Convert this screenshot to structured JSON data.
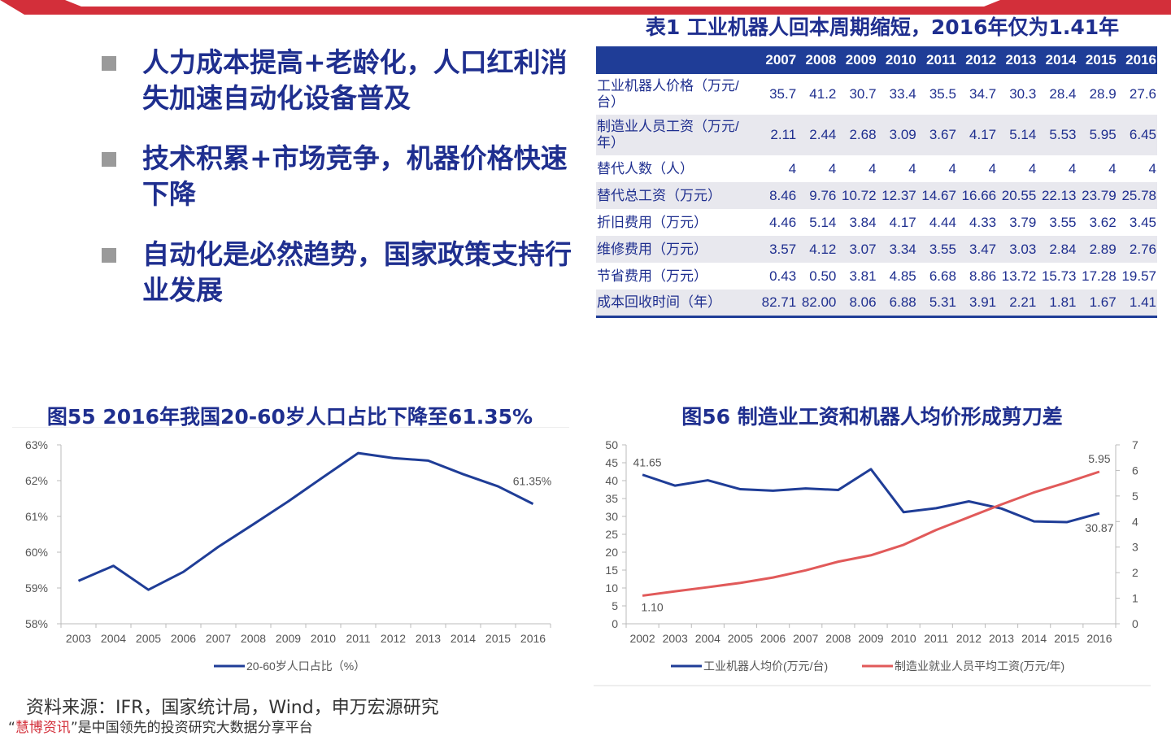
{
  "bullets": [
    "人力成本提高+老龄化，人口红利消失加速自动化设备普及",
    "技术积累+市场竞争，机器价格快速下降",
    "自动化是必然趋势，国家政策支持行业发展"
  ],
  "table": {
    "title": "表1 工业机器人回本周期缩短，2016年仅为1.41年",
    "years": [
      "2007",
      "2008",
      "2009",
      "2010",
      "2011",
      "2012",
      "2013",
      "2014",
      "2015",
      "2016"
    ],
    "rows": [
      {
        "label": "工业机器人价格（万元/台）",
        "values": [
          "35.7",
          "41.2",
          "30.7",
          "33.4",
          "35.5",
          "34.7",
          "30.3",
          "28.4",
          "28.9",
          "27.6"
        ]
      },
      {
        "label": "制造业人员工资（万元/年）",
        "values": [
          "2.11",
          "2.44",
          "2.68",
          "3.09",
          "3.67",
          "4.17",
          "5.14",
          "5.53",
          "5.95",
          "6.45"
        ]
      },
      {
        "label": "替代人数（人）",
        "values": [
          "4",
          "4",
          "4",
          "4",
          "4",
          "4",
          "4",
          "4",
          "4",
          "4"
        ]
      },
      {
        "label": "替代总工资（万元）",
        "values": [
          "8.46",
          "9.76",
          "10.72",
          "12.37",
          "14.67",
          "16.66",
          "20.55",
          "22.13",
          "23.79",
          "25.78"
        ]
      },
      {
        "label": "折旧费用（万元）",
        "values": [
          "4.46",
          "5.14",
          "3.84",
          "4.17",
          "4.44",
          "4.33",
          "3.79",
          "3.55",
          "3.62",
          "3.45"
        ]
      },
      {
        "label": "维修费用（万元）",
        "values": [
          "3.57",
          "4.12",
          "3.07",
          "3.34",
          "3.55",
          "3.47",
          "3.03",
          "2.84",
          "2.89",
          "2.76"
        ]
      },
      {
        "label": "节省费用（万元）",
        "values": [
          "0.43",
          "0.50",
          "3.81",
          "4.85",
          "6.68",
          "8.86",
          "13.72",
          "15.73",
          "17.28",
          "19.57"
        ]
      },
      {
        "label": "成本回收时间（年）",
        "values": [
          "82.71",
          "82.00",
          "8.06",
          "6.88",
          "5.31",
          "3.91",
          "2.21",
          "1.81",
          "1.67",
          "1.41"
        ]
      }
    ]
  },
  "chart_data": [
    {
      "type": "line",
      "title": "图55 2016年我国20-60岁人口占比下降至61.35%",
      "x": [
        "2003",
        "2004",
        "2005",
        "2006",
        "2007",
        "2008",
        "2009",
        "2010",
        "2011",
        "2012",
        "2013",
        "2014",
        "2015",
        "2016"
      ],
      "series": [
        {
          "name": "20-60岁人口占比（%）",
          "values": [
            59.2,
            59.62,
            58.95,
            59.45,
            60.15,
            60.78,
            61.42,
            62.1,
            62.77,
            62.63,
            62.56,
            62.18,
            61.84,
            61.35
          ],
          "color": "#1f3d97"
        }
      ],
      "y_ticks": [
        "58%",
        "59%",
        "60%",
        "61%",
        "62%",
        "63%"
      ],
      "ylim": [
        58,
        63
      ],
      "annotations": [
        "61.35%"
      ],
      "legend": "bottom"
    },
    {
      "type": "line",
      "title": "图56 制造业工资和机器人均价形成剪刀差",
      "x": [
        "2002",
        "2003",
        "2004",
        "2005",
        "2006",
        "2007",
        "2008",
        "2009",
        "2010",
        "2011",
        "2012",
        "2013",
        "2014",
        "2015",
        "2016"
      ],
      "series": [
        {
          "name": "工业机器人均价(万元/台)",
          "axis": "left",
          "values": [
            41.65,
            38.6,
            40.1,
            37.6,
            37.2,
            37.8,
            37.4,
            43.2,
            31.2,
            32.3,
            34.2,
            32.2,
            28.6,
            28.4,
            30.87
          ],
          "color": "#1f3d97"
        },
        {
          "name": "制造业就业人员平均工资(万元/年)",
          "axis": "right",
          "values": [
            1.1,
            1.27,
            1.43,
            1.6,
            1.81,
            2.09,
            2.43,
            2.68,
            3.09,
            3.67,
            4.17,
            4.67,
            5.14,
            5.53,
            5.95
          ],
          "color": "#e15a5a"
        }
      ],
      "y_left_ticks": [
        "0",
        "5",
        "10",
        "15",
        "20",
        "25",
        "30",
        "35",
        "40",
        "45",
        "50"
      ],
      "y_right_ticks": [
        "0",
        "1",
        "2",
        "3",
        "4",
        "5",
        "6",
        "7"
      ],
      "ylim_left": [
        0,
        50
      ],
      "ylim_right": [
        0,
        7
      ],
      "annotations": [
        "41.65",
        "1.10",
        "5.95",
        "30.87"
      ],
      "legend": "bottom"
    }
  ],
  "source": "资料来源：IFR，国家统计局，Wind，申万宏源研究",
  "footer": {
    "brand": "慧博资讯",
    "quote_open": "“",
    "quote_close": "”",
    "text": "是中国领先的投资研究大数据分享平台"
  }
}
